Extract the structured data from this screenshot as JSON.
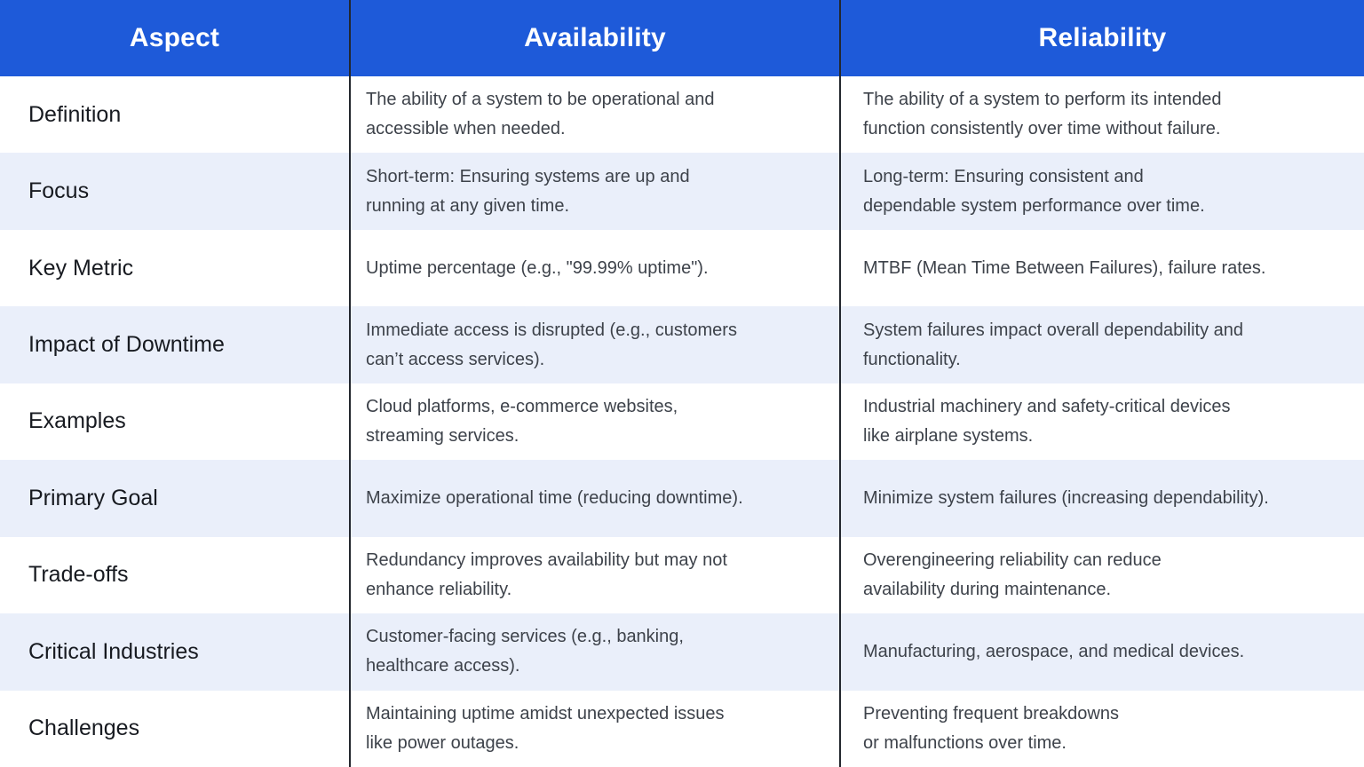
{
  "colors": {
    "header_bg": "#1E5AD9",
    "header_text": "#FFFFFF",
    "row_bg": "#FFFFFF",
    "row_alt_bg": "#EAEFFA",
    "divider": "#23272E",
    "aspect_text": "#171A20",
    "cell_text": "#3D424A"
  },
  "table": {
    "columns": [
      {
        "label": "Aspect"
      },
      {
        "label": "Availability"
      },
      {
        "label": "Reliability"
      }
    ],
    "rows": [
      {
        "aspect": "Definition",
        "availability": "The ability of a system to be operational and\naccessible when needed.",
        "reliability": "The ability of a system to perform its intended\nfunction consistently over time without failure."
      },
      {
        "aspect": "Focus",
        "availability": "Short-term: Ensuring systems are up and\nrunning at any given time.",
        "reliability": "Long-term: Ensuring consistent and\ndependable system performance over time."
      },
      {
        "aspect": "Key Metric",
        "availability": "Uptime percentage (e.g., \"99.99% uptime\").",
        "reliability": "MTBF (Mean Time Between Failures), failure rates."
      },
      {
        "aspect": "Impact of Downtime",
        "availability": "Immediate access is disrupted (e.g., customers\ncan’t access services).",
        "reliability": "System failures impact overall dependability and\nfunctionality."
      },
      {
        "aspect": "Examples",
        "availability": "Cloud platforms, e-commerce websites,\nstreaming services.",
        "reliability": "Industrial machinery and safety-critical devices\nlike airplane systems."
      },
      {
        "aspect": "Primary Goal",
        "availability": "Maximize operational time (reducing downtime).",
        "reliability": "Minimize system failures (increasing dependability)."
      },
      {
        "aspect": "Trade-offs",
        "availability": "Redundancy improves availability but may not\nenhance reliability.",
        "reliability": "Overengineering reliability can reduce\navailability during maintenance."
      },
      {
        "aspect": "Critical Industries",
        "availability": "Customer-facing services (e.g., banking,\nhealthcare access).",
        "reliability": "Manufacturing, aerospace, and medical devices."
      },
      {
        "aspect": "Challenges",
        "availability": "Maintaining uptime amidst unexpected issues\nlike power outages.",
        "reliability": "Preventing frequent breakdowns\nor malfunctions over time."
      }
    ]
  }
}
